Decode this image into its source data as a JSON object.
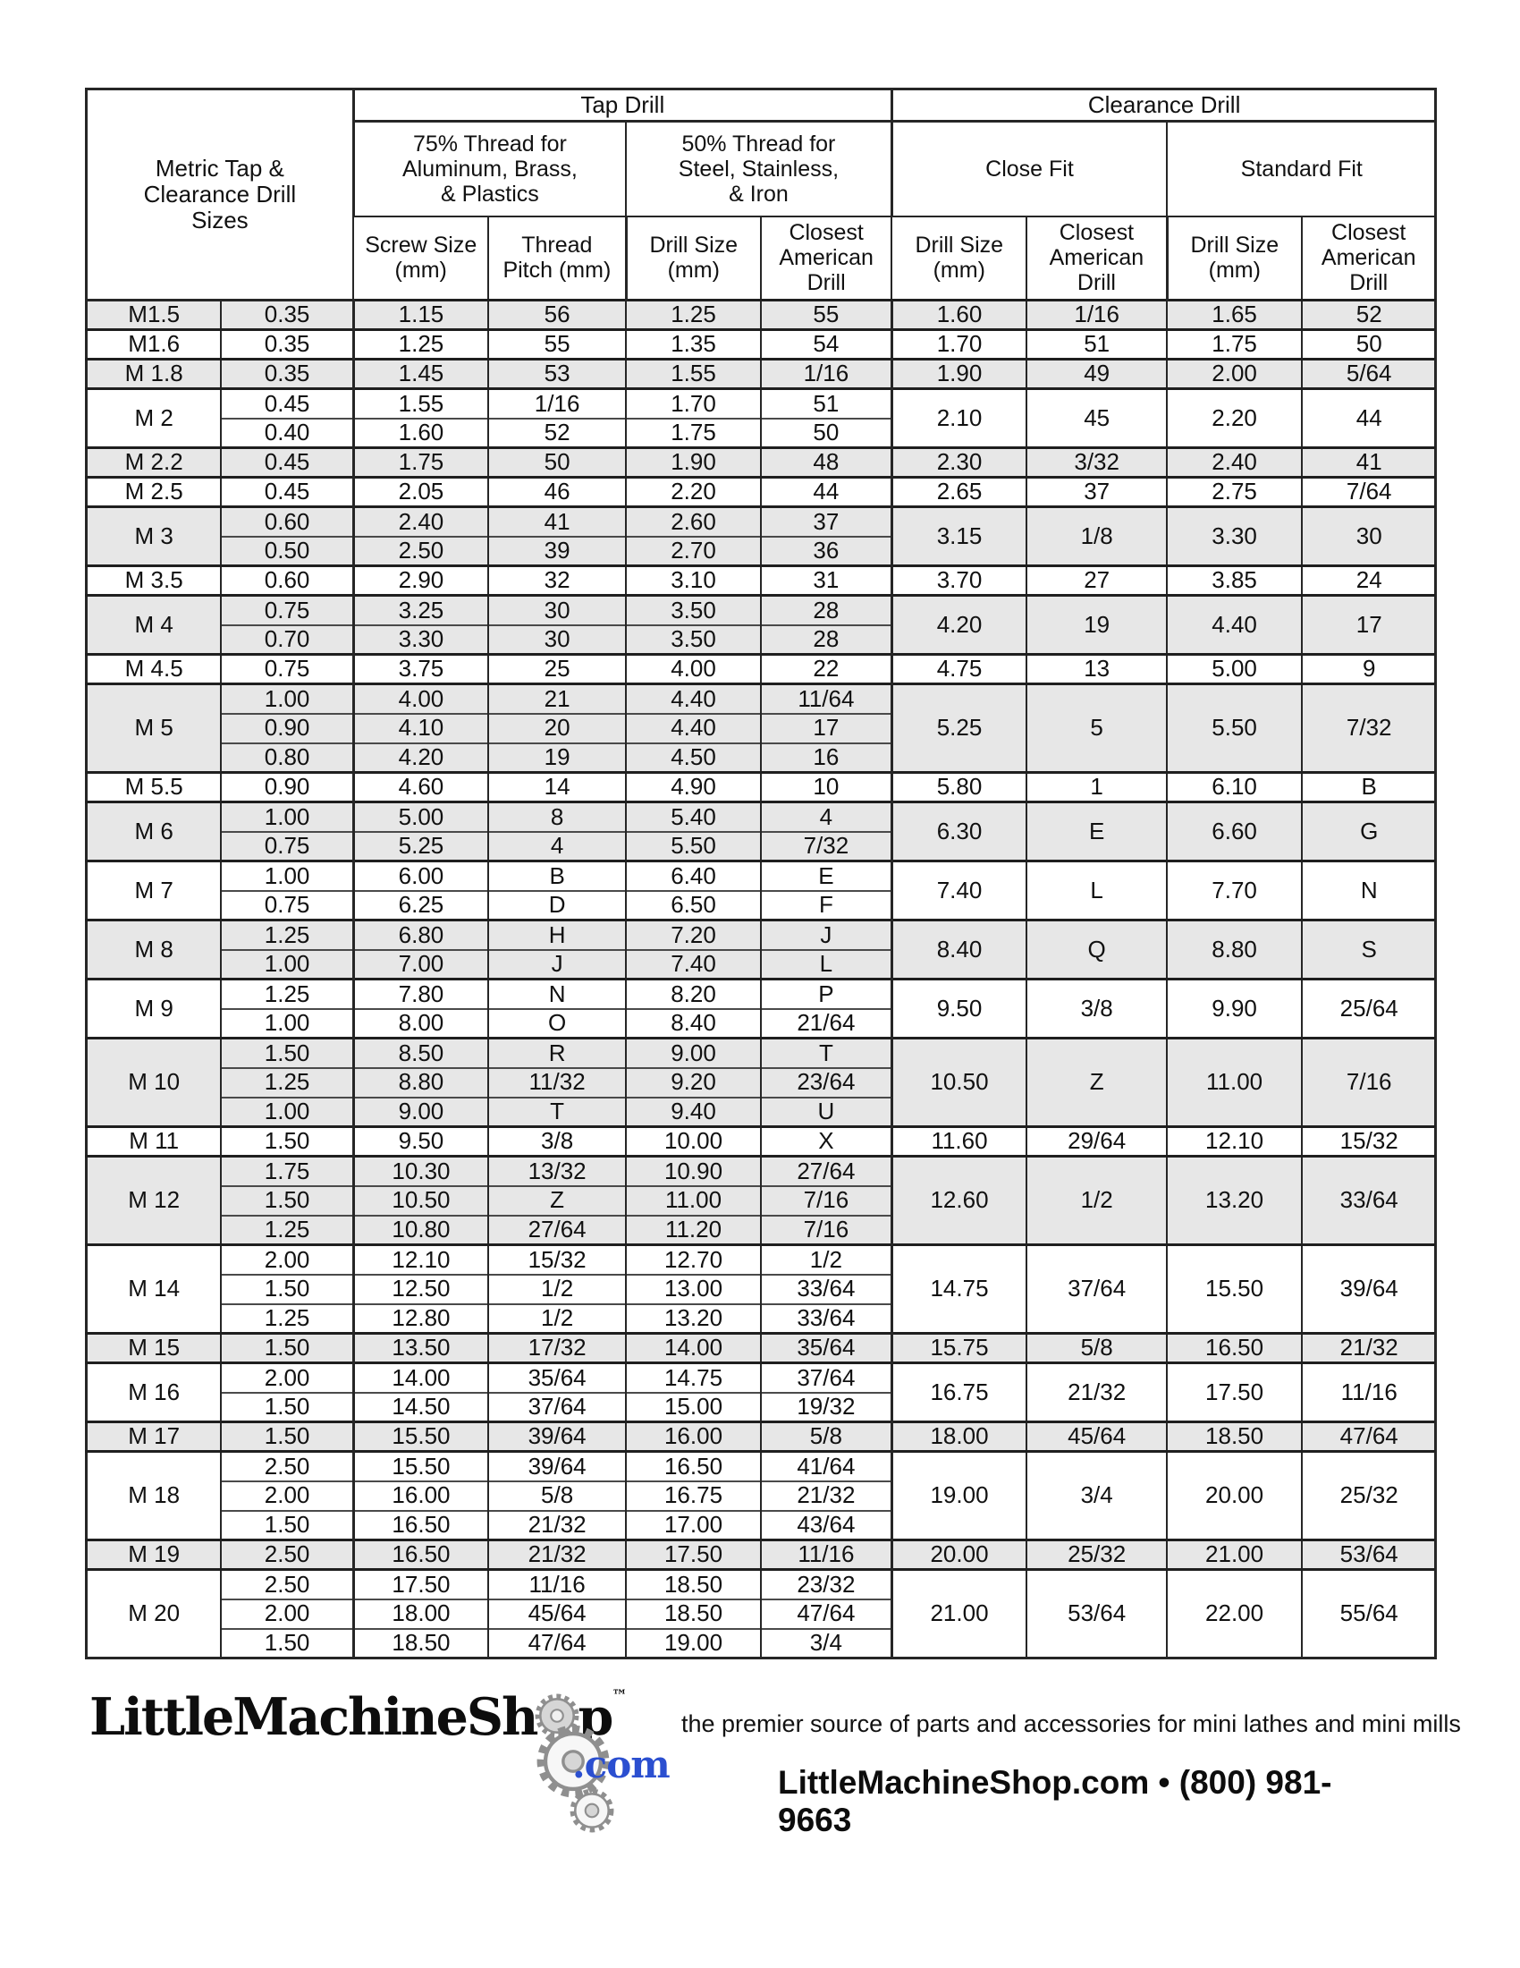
{
  "title": "Metric Tap &\nClearance Drill\nSizes",
  "header": {
    "tap_drill": "Tap Drill",
    "clearance_drill": "Clearance Drill",
    "tap75": "75% Thread for\nAluminum, Brass,\n& Plastics",
    "tap50": "50% Thread for\nSteel, Stainless,\n& Iron",
    "close_fit": "Close Fit",
    "standard_fit": "Standard Fit",
    "screw_size": "Screw Size\n(mm)",
    "thread_pitch": "Thread\nPitch (mm)",
    "drill_size": "Drill Size\n(mm)",
    "closest_american": "Closest\nAmerican\nDrill"
  },
  "groups": [
    {
      "size": "M1.5",
      "rows": [
        [
          "0.35",
          "1.15",
          "56",
          "1.25",
          "55"
        ]
      ],
      "clearance": [
        "1.60",
        "1/16",
        "1.65",
        "52"
      ]
    },
    {
      "size": "M1.6",
      "rows": [
        [
          "0.35",
          "1.25",
          "55",
          "1.35",
          "54"
        ]
      ],
      "clearance": [
        "1.70",
        "51",
        "1.75",
        "50"
      ]
    },
    {
      "size": "M 1.8",
      "rows": [
        [
          "0.35",
          "1.45",
          "53",
          "1.55",
          "1/16"
        ]
      ],
      "clearance": [
        "1.90",
        "49",
        "2.00",
        "5/64"
      ]
    },
    {
      "size": "M 2",
      "rows": [
        [
          "0.45",
          "1.55",
          "1/16",
          "1.70",
          "51"
        ],
        [
          "0.40",
          "1.60",
          "52",
          "1.75",
          "50"
        ]
      ],
      "clearance": [
        "2.10",
        "45",
        "2.20",
        "44"
      ]
    },
    {
      "size": "M 2.2",
      "rows": [
        [
          "0.45",
          "1.75",
          "50",
          "1.90",
          "48"
        ]
      ],
      "clearance": [
        "2.30",
        "3/32",
        "2.40",
        "41"
      ]
    },
    {
      "size": "M 2.5",
      "rows": [
        [
          "0.45",
          "2.05",
          "46",
          "2.20",
          "44"
        ]
      ],
      "clearance": [
        "2.65",
        "37",
        "2.75",
        "7/64"
      ]
    },
    {
      "size": "M 3",
      "rows": [
        [
          "0.60",
          "2.40",
          "41",
          "2.60",
          "37"
        ],
        [
          "0.50",
          "2.50",
          "39",
          "2.70",
          "36"
        ]
      ],
      "clearance": [
        "3.15",
        "1/8",
        "3.30",
        "30"
      ]
    },
    {
      "size": "M 3.5",
      "rows": [
        [
          "0.60",
          "2.90",
          "32",
          "3.10",
          "31"
        ]
      ],
      "clearance": [
        "3.70",
        "27",
        "3.85",
        "24"
      ]
    },
    {
      "size": "M 4",
      "rows": [
        [
          "0.75",
          "3.25",
          "30",
          "3.50",
          "28"
        ],
        [
          "0.70",
          "3.30",
          "30",
          "3.50",
          "28"
        ]
      ],
      "clearance": [
        "4.20",
        "19",
        "4.40",
        "17"
      ]
    },
    {
      "size": "M 4.5",
      "rows": [
        [
          "0.75",
          "3.75",
          "25",
          "4.00",
          "22"
        ]
      ],
      "clearance": [
        "4.75",
        "13",
        "5.00",
        "9"
      ]
    },
    {
      "size": "M 5",
      "rows": [
        [
          "1.00",
          "4.00",
          "21",
          "4.40",
          "11/64"
        ],
        [
          "0.90",
          "4.10",
          "20",
          "4.40",
          "17"
        ],
        [
          "0.80",
          "4.20",
          "19",
          "4.50",
          "16"
        ]
      ],
      "clearance": [
        "5.25",
        "5",
        "5.50",
        "7/32"
      ]
    },
    {
      "size": "M 5.5",
      "rows": [
        [
          "0.90",
          "4.60",
          "14",
          "4.90",
          "10"
        ]
      ],
      "clearance": [
        "5.80",
        "1",
        "6.10",
        "B"
      ]
    },
    {
      "size": "M 6",
      "rows": [
        [
          "1.00",
          "5.00",
          "8",
          "5.40",
          "4"
        ],
        [
          "0.75",
          "5.25",
          "4",
          "5.50",
          "7/32"
        ]
      ],
      "clearance": [
        "6.30",
        "E",
        "6.60",
        "G"
      ]
    },
    {
      "size": "M 7",
      "rows": [
        [
          "1.00",
          "6.00",
          "B",
          "6.40",
          "E"
        ],
        [
          "0.75",
          "6.25",
          "D",
          "6.50",
          "F"
        ]
      ],
      "clearance": [
        "7.40",
        "L",
        "7.70",
        "N"
      ]
    },
    {
      "size": "M 8",
      "rows": [
        [
          "1.25",
          "6.80",
          "H",
          "7.20",
          "J"
        ],
        [
          "1.00",
          "7.00",
          "J",
          "7.40",
          "L"
        ]
      ],
      "clearance": [
        "8.40",
        "Q",
        "8.80",
        "S"
      ]
    },
    {
      "size": "M 9",
      "rows": [
        [
          "1.25",
          "7.80",
          "N",
          "8.20",
          "P"
        ],
        [
          "1.00",
          "8.00",
          "O",
          "8.40",
          "21/64"
        ]
      ],
      "clearance": [
        "9.50",
        "3/8",
        "9.90",
        "25/64"
      ]
    },
    {
      "size": "M 10",
      "rows": [
        [
          "1.50",
          "8.50",
          "R",
          "9.00",
          "T"
        ],
        [
          "1.25",
          "8.80",
          "11/32",
          "9.20",
          "23/64"
        ],
        [
          "1.00",
          "9.00",
          "T",
          "9.40",
          "U"
        ]
      ],
      "clearance": [
        "10.50",
        "Z",
        "11.00",
        "7/16"
      ]
    },
    {
      "size": "M 11",
      "rows": [
        [
          "1.50",
          "9.50",
          "3/8",
          "10.00",
          "X"
        ]
      ],
      "clearance": [
        "11.60",
        "29/64",
        "12.10",
        "15/32"
      ]
    },
    {
      "size": "M 12",
      "rows": [
        [
          "1.75",
          "10.30",
          "13/32",
          "10.90",
          "27/64"
        ],
        [
          "1.50",
          "10.50",
          "Z",
          "11.00",
          "7/16"
        ],
        [
          "1.25",
          "10.80",
          "27/64",
          "11.20",
          "7/16"
        ]
      ],
      "clearance": [
        "12.60",
        "1/2",
        "13.20",
        "33/64"
      ]
    },
    {
      "size": "M 14",
      "rows": [
        [
          "2.00",
          "12.10",
          "15/32",
          "12.70",
          "1/2"
        ],
        [
          "1.50",
          "12.50",
          "1/2",
          "13.00",
          "33/64"
        ],
        [
          "1.25",
          "12.80",
          "1/2",
          "13.20",
          "33/64"
        ]
      ],
      "clearance": [
        "14.75",
        "37/64",
        "15.50",
        "39/64"
      ]
    },
    {
      "size": "M 15",
      "rows": [
        [
          "1.50",
          "13.50",
          "17/32",
          "14.00",
          "35/64"
        ]
      ],
      "clearance": [
        "15.75",
        "5/8",
        "16.50",
        "21/32"
      ]
    },
    {
      "size": "M 16",
      "rows": [
        [
          "2.00",
          "14.00",
          "35/64",
          "14.75",
          "37/64"
        ],
        [
          "1.50",
          "14.50",
          "37/64",
          "15.00",
          "19/32"
        ]
      ],
      "clearance": [
        "16.75",
        "21/32",
        "17.50",
        "11/16"
      ]
    },
    {
      "size": "M 17",
      "rows": [
        [
          "1.50",
          "15.50",
          "39/64",
          "16.00",
          "5/8"
        ]
      ],
      "clearance": [
        "18.00",
        "45/64",
        "18.50",
        "47/64"
      ]
    },
    {
      "size": "M 18",
      "rows": [
        [
          "2.50",
          "15.50",
          "39/64",
          "16.50",
          "41/64"
        ],
        [
          "2.00",
          "16.00",
          "5/8",
          "16.75",
          "21/32"
        ],
        [
          "1.50",
          "16.50",
          "21/32",
          "17.00",
          "43/64"
        ]
      ],
      "clearance": [
        "19.00",
        "3/4",
        "20.00",
        "25/32"
      ]
    },
    {
      "size": "M 19",
      "rows": [
        [
          "2.50",
          "16.50",
          "21/32",
          "17.50",
          "11/16"
        ]
      ],
      "clearance": [
        "20.00",
        "25/32",
        "21.00",
        "53/64"
      ]
    },
    {
      "size": "M 20",
      "rows": [
        [
          "2.50",
          "17.50",
          "11/16",
          "18.50",
          "23/32"
        ],
        [
          "2.00",
          "18.00",
          "45/64",
          "18.50",
          "47/64"
        ],
        [
          "1.50",
          "18.50",
          "47/64",
          "19.00",
          "3/4"
        ]
      ],
      "clearance": [
        "21.00",
        "53/64",
        "22.00",
        "55/64"
      ]
    }
  ],
  "footer": {
    "logo_part1": "LittleMachineSh",
    "logo_part2": "p",
    "logo_tm": "™",
    "logo_com": ".com",
    "tagline": "the premier source of parts and accessories for mini lathes and mini mills",
    "contact": "LittleMachineShop.com • (800) 981-9663"
  },
  "colors": {
    "row_shade": "#e7e7e7",
    "border": "#262626",
    "logo_blue": "#2b4fd0",
    "gear_gray": "#8f8f8f"
  }
}
